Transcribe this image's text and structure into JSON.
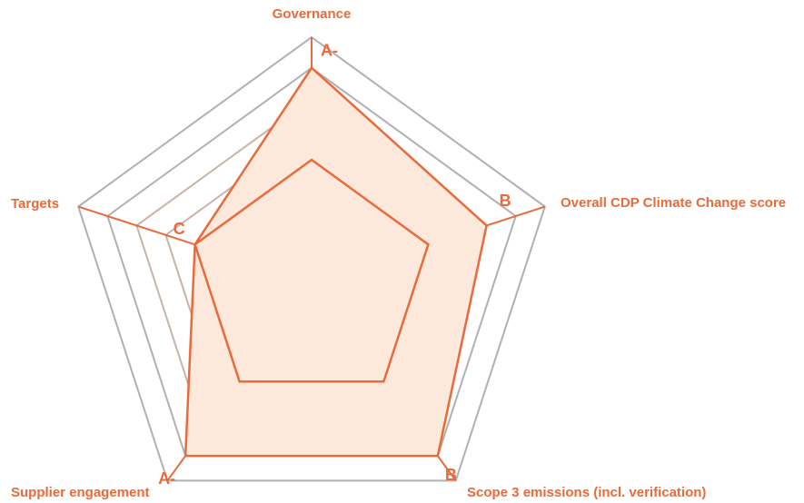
{
  "chart_data": {
    "type": "radar",
    "title": "",
    "axes": [
      "Governance",
      "Overall CDP Climate Change score",
      "Scope 3 emissions (incl. verification)",
      "Supplier engagement",
      "Targets"
    ],
    "rings": 8,
    "series": [
      {
        "values": [
          7,
          6,
          7,
          7,
          4
        ],
        "labels": [
          "A-",
          "B",
          "B",
          "A-",
          "C"
        ],
        "fill": true
      },
      {
        "values": [
          4,
          4,
          4,
          4,
          4
        ],
        "fill": false
      }
    ],
    "colors": {
      "accent": "#E96A3A",
      "grid_outer": "#B0B0B0",
      "grid_inner": "#C9B2A6",
      "fill": "#FDE8DC"
    }
  }
}
